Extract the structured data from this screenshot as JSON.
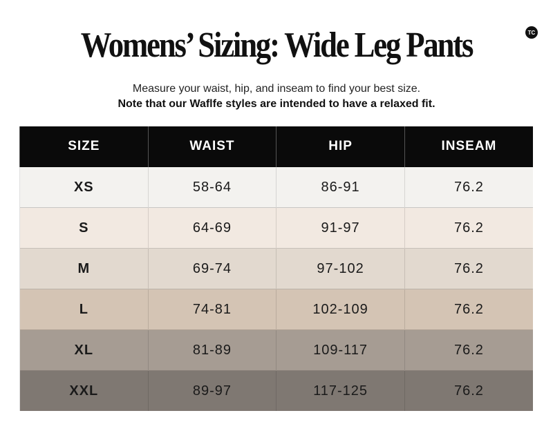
{
  "title": "Womens’ Sizing:  Wide Leg Pants",
  "logo": "TC",
  "subtitle": "Measure your waist, hip, and inseam to find your best size.",
  "note": "Note that our Waflfe styles are intended to have a relaxed fit.",
  "headers": [
    "SIZE",
    "WAIST",
    "HIP",
    "INSEAM"
  ],
  "rows": [
    {
      "size": "XS",
      "waist": "58-64",
      "hip": "86-91",
      "inseam": "76.2",
      "color": "#f3f2ef"
    },
    {
      "size": "S",
      "waist": "64-69",
      "hip": "91-97",
      "inseam": "76.2",
      "color": "#f2e9e1"
    },
    {
      "size": "M",
      "waist": "69-74",
      "hip": "97-102",
      "inseam": "76.2",
      "color": "#e2d9cf"
    },
    {
      "size": "L",
      "waist": "74-81",
      "hip": "102-109",
      "inseam": "76.2",
      "color": "#d4c4b4"
    },
    {
      "size": "XL",
      "waist": "81-89",
      "hip": "109-117",
      "inseam": "76.2",
      "color": "#a69c93"
    },
    {
      "size": "XXL",
      "waist": "89-97",
      "hip": "117-125",
      "inseam": "76.2",
      "color": "#7f7872"
    }
  ]
}
